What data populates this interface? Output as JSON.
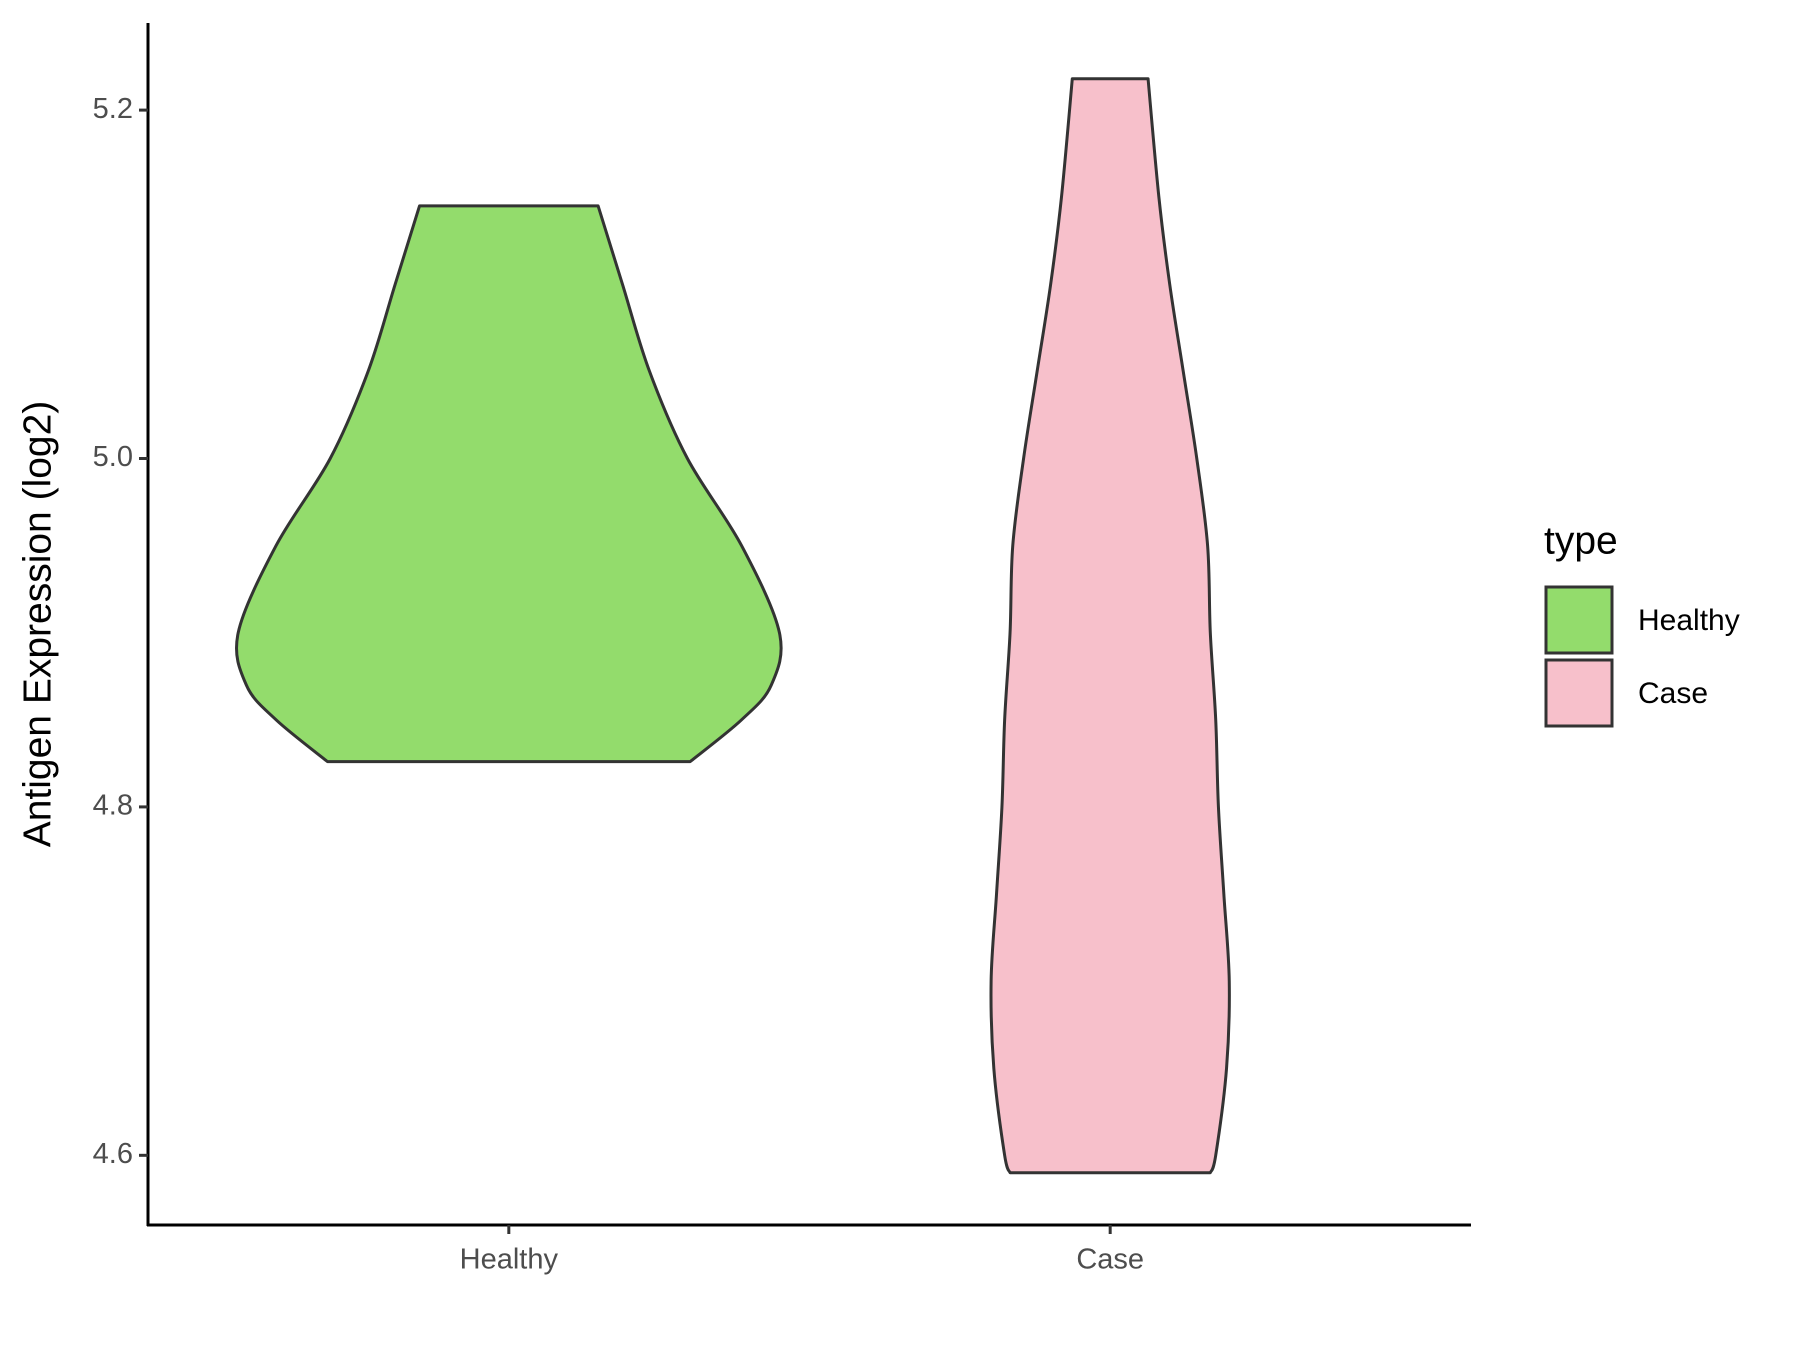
{
  "chart_data": {
    "type": "violin",
    "y_label": "Antigen Expression (log2)",
    "categories": [
      "Healthy",
      "Case"
    ],
    "ylim": [
      4.56,
      5.25
    ],
    "yticks": [
      {
        "value": 4.6,
        "label": "4.6"
      },
      {
        "value": 4.8,
        "label": "4.8"
      },
      {
        "value": 5.0,
        "label": "5.0"
      },
      {
        "value": 5.2,
        "label": "5.2"
      }
    ],
    "grid": false,
    "legend_title": "type",
    "legend_position": "right",
    "series": [
      {
        "name": "Healthy",
        "color": "#93dc6c",
        "y": [
          5.145,
          5.1,
          5.05,
          5.0,
          4.95,
          4.9,
          4.87,
          4.85,
          4.826
        ],
        "density": [
          0.33,
          0.42,
          0.52,
          0.66,
          0.86,
          1.0,
          0.97,
          0.86,
          0.67
        ]
      },
      {
        "name": "Case",
        "color": "#f7c0cb",
        "y": [
          5.218,
          5.15,
          5.1,
          5.05,
          5.0,
          4.95,
          4.9,
          4.85,
          4.8,
          4.75,
          4.7,
          4.65,
          4.6,
          4.59
        ],
        "density": [
          0.14,
          0.18,
          0.22,
          0.27,
          0.32,
          0.36,
          0.37,
          0.39,
          0.4,
          0.42,
          0.44,
          0.43,
          0.39,
          0.37
        ]
      }
    ]
  }
}
